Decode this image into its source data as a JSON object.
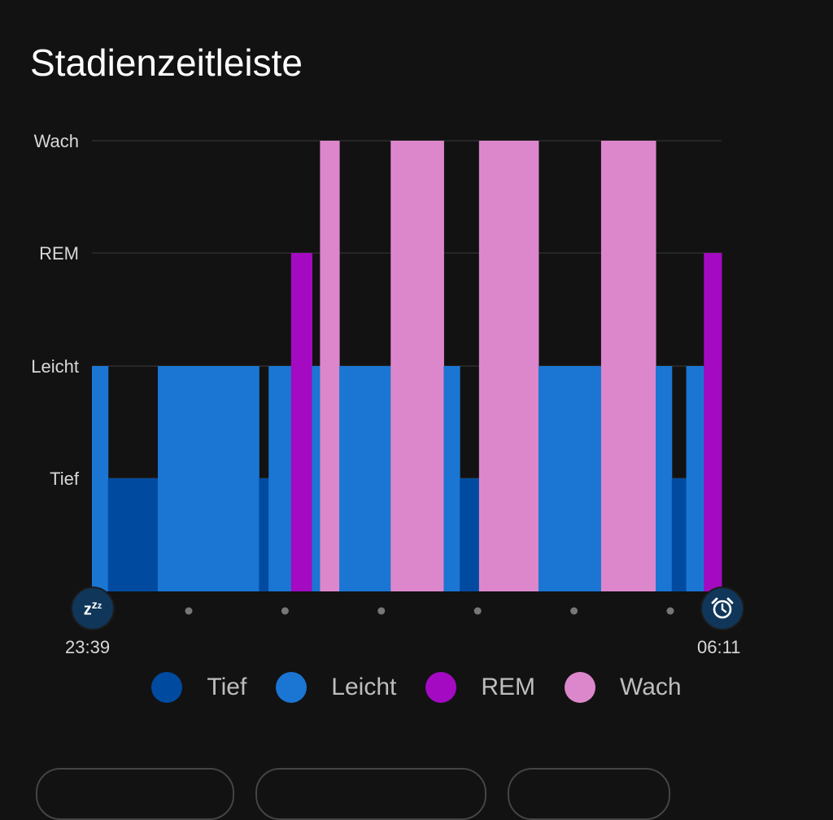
{
  "header": {
    "title": "Stadienzeitleiste"
  },
  "chart_data": {
    "type": "bar",
    "title": "Stadienzeitleiste",
    "levels": [
      "Tief",
      "Leicht",
      "REM",
      "Wach"
    ],
    "start_time": "23:39",
    "end_time": "06:11",
    "total_minutes": 392,
    "colors": {
      "Tief": "#004ba0",
      "Leicht": "#1a76d2",
      "REM": "#a30ac2",
      "Wach": "#dc87cb"
    },
    "segments": [
      {
        "stage": "Leicht",
        "start": 0,
        "end": 10
      },
      {
        "stage": "Tief",
        "start": 10,
        "end": 41
      },
      {
        "stage": "Leicht",
        "start": 41,
        "end": 104
      },
      {
        "stage": "Tief",
        "start": 104,
        "end": 110
      },
      {
        "stage": "Leicht",
        "start": 110,
        "end": 124
      },
      {
        "stage": "REM",
        "start": 124,
        "end": 137
      },
      {
        "stage": "Leicht",
        "start": 137,
        "end": 142
      },
      {
        "stage": "Wach",
        "start": 142,
        "end": 154
      },
      {
        "stage": "Leicht",
        "start": 154,
        "end": 186
      },
      {
        "stage": "Wach",
        "start": 186,
        "end": 219
      },
      {
        "stage": "Leicht",
        "start": 219,
        "end": 229
      },
      {
        "stage": "Tief",
        "start": 229,
        "end": 241
      },
      {
        "stage": "Wach",
        "start": 241,
        "end": 278
      },
      {
        "stage": "Leicht",
        "start": 278,
        "end": 317
      },
      {
        "stage": "Wach",
        "start": 317,
        "end": 351
      },
      {
        "stage": "Leicht",
        "start": 351,
        "end": 361
      },
      {
        "stage": "Tief",
        "start": 361,
        "end": 370
      },
      {
        "stage": "Leicht",
        "start": 370,
        "end": 381
      },
      {
        "stage": "REM",
        "start": 381,
        "end": 392
      }
    ],
    "legend": [
      "Tief",
      "Leicht",
      "REM",
      "Wach"
    ],
    "x_tick_dots": 6,
    "grid": true
  },
  "icons": {
    "start": "zzz-icon",
    "end": "alarm-clock-icon"
  }
}
